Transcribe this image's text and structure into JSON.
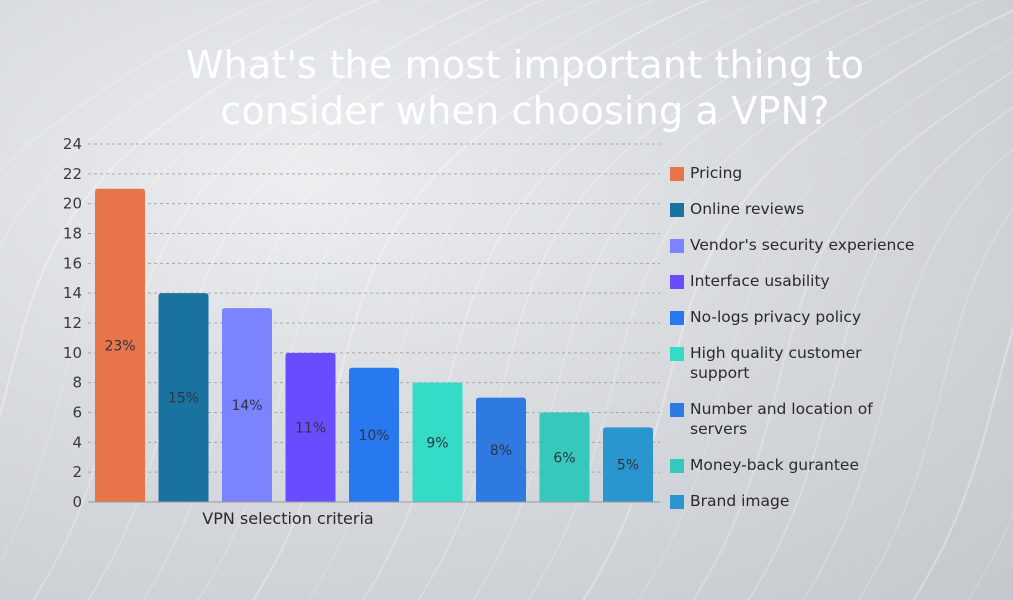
{
  "title": "What's the most important thing to consider when choosing a VPN?",
  "chart_data": {
    "type": "bar",
    "title": "What's the most important thing to consider when choosing a VPN?",
    "xlabel": "VPN selection criteria",
    "ylabel": "",
    "ylim": [
      0,
      24
    ],
    "yticks": [
      0,
      2,
      4,
      6,
      8,
      10,
      12,
      14,
      16,
      18,
      20,
      22,
      24
    ],
    "grid": true,
    "legend_position": "right",
    "categories": [
      "Pricing",
      "Online reviews",
      "Vendor's security experience",
      "Interface usability",
      "No-logs privacy policy",
      "High quality customer support",
      "Number and location of servers",
      "Money-back gurantee",
      "Brand image"
    ],
    "values": [
      21,
      14,
      13,
      10,
      9,
      8,
      7,
      6,
      5
    ],
    "data_labels": [
      "23%",
      "15%",
      "14%",
      "11%",
      "10%",
      "9%",
      "8%",
      "6%",
      "5%"
    ],
    "colors": [
      "#e8744a",
      "#1a72a0",
      "#7b83ff",
      "#6a4cff",
      "#2878f0",
      "#34dcc8",
      "#2e7ae0",
      "#36c8bc",
      "#2a96d0"
    ]
  }
}
